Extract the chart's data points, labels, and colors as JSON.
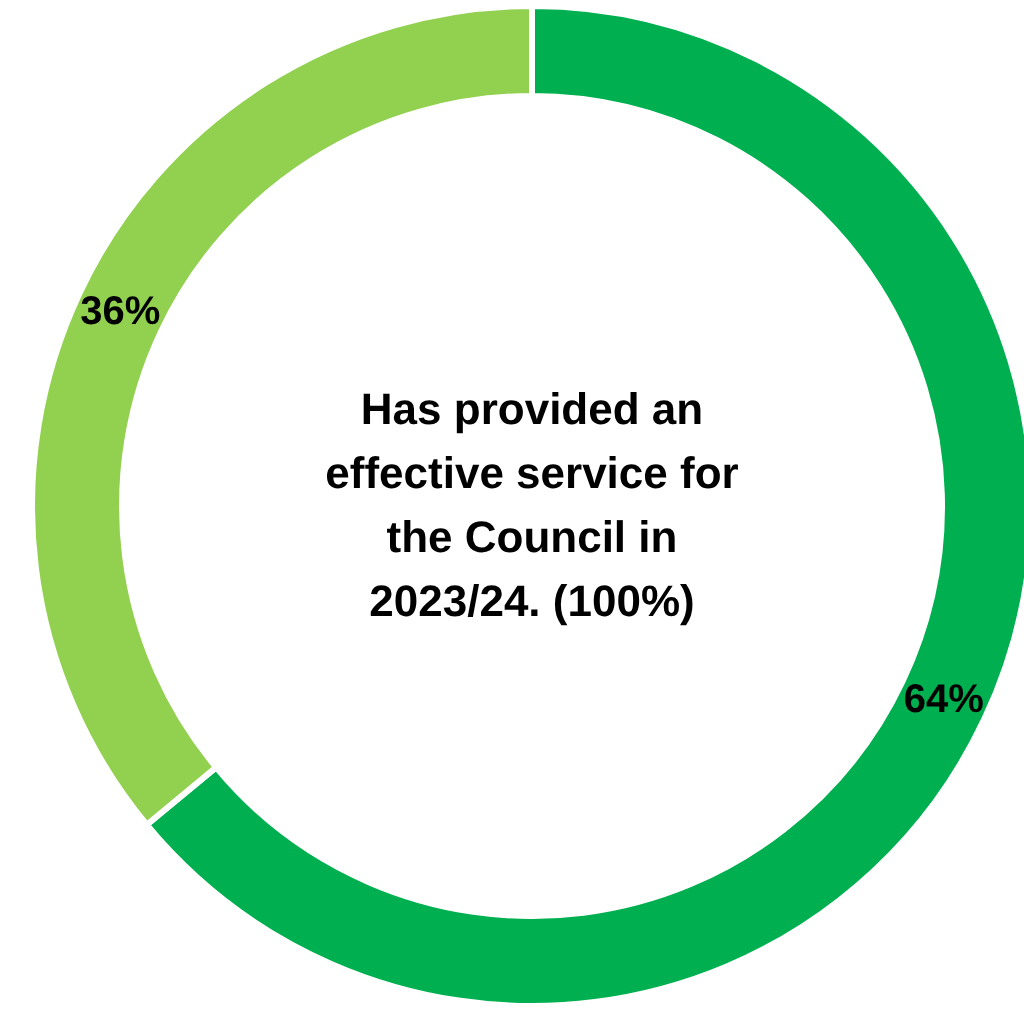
{
  "chart_data": {
    "type": "donut",
    "annotations": [
      "Has provided an effective service for the Council in 2023/24. (100%)"
    ],
    "categories": [
      null,
      null
    ],
    "values": [
      64,
      36
    ],
    "colors": [
      "#00b050",
      "#92d050"
    ],
    "value_labels": [
      "64%",
      "36%"
    ],
    "legend": false
  }
}
